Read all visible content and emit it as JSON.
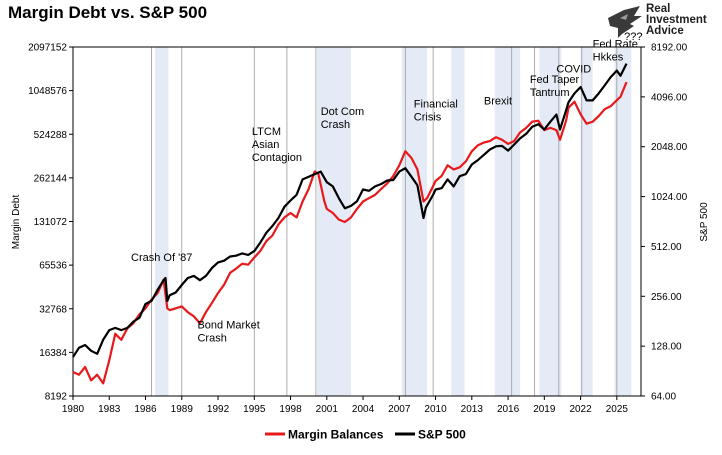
{
  "chart_data": {
    "type": "line",
    "title": "Margin Debt vs. S&P 500",
    "ylabel_left": "Margin Debt",
    "ylabel_right": "S&P 500",
    "left_axis": {
      "scale": "log2",
      "range": [
        8192,
        2097152
      ],
      "ticks": [
        "8192",
        "16384",
        "32768",
        "65536",
        "131072",
        "262144",
        "524288",
        "1048576",
        "2097152"
      ],
      "tick_values": [
        8192,
        16384,
        32768,
        65536,
        131072,
        262144,
        524288,
        1048576,
        2097152
      ]
    },
    "right_axis": {
      "scale": "log2",
      "range": [
        64,
        8192
      ],
      "ticks": [
        "64.00",
        "128.00",
        "256.00",
        "512.00",
        "1024.00",
        "2048.00",
        "4096.00",
        "8192.00"
      ],
      "tick_values": [
        64,
        128,
        256,
        512,
        1024,
        2048,
        4096,
        8192
      ]
    },
    "x_axis": {
      "range": [
        1980,
        2027
      ],
      "ticks": [
        "1980",
        "1983",
        "1986",
        "1989",
        "1992",
        "1995",
        "1998",
        "2001",
        "2004",
        "2007",
        "2010",
        "2013",
        "2016",
        "2019",
        "2022",
        "2025"
      ],
      "tick_values": [
        1980,
        1983,
        1986,
        1989,
        1992,
        1995,
        1998,
        2001,
        2004,
        2007,
        2010,
        2013,
        2016,
        2019,
        2022,
        2025
      ]
    },
    "shaded_periods": [
      [
        1986.8,
        1987.9
      ],
      [
        2000.2,
        2003.0
      ],
      [
        2007.2,
        2009.3
      ],
      [
        2011.3,
        2012.4
      ],
      [
        2014.9,
        2017.0
      ],
      [
        2018.6,
        2020.4
      ],
      [
        2022.0,
        2023.0
      ],
      [
        2024.8,
        2026.2
      ]
    ],
    "vertical_lines": [
      1986.5,
      1989,
      1995,
      1997.7,
      2000.1,
      2007.5,
      2009.8,
      2016.3,
      2018.2,
      2020.2,
      2022.1,
      2025.0
    ],
    "series": [
      {
        "name": "Margin Balances",
        "color": "#e8191b",
        "axis": "left",
        "x": [
          1980,
          1980.5,
          1981,
          1981.5,
          1982,
          1982.5,
          1983,
          1983.5,
          1984,
          1984.5,
          1985,
          1985.5,
          1986,
          1986.5,
          1987,
          1987.5,
          1987.8,
          1988,
          1988.5,
          1989,
          1989.5,
          1990,
          1990.5,
          1991,
          1991.5,
          1992,
          1992.5,
          1993,
          1993.5,
          1994,
          1994.5,
          1995,
          1995.5,
          1996,
          1996.5,
          1997,
          1997.5,
          1998,
          1998.5,
          1999,
          1999.5,
          2000,
          2000.3,
          2000.8,
          2001,
          2001.5,
          2002,
          2002.5,
          2003,
          2003.5,
          2004,
          2004.5,
          2005,
          2005.5,
          2006,
          2006.5,
          2007,
          2007.5,
          2008,
          2008.5,
          2009,
          2009.3,
          2009.8,
          2010,
          2010.5,
          2011,
          2011.5,
          2012,
          2012.5,
          2013,
          2013.5,
          2014,
          2014.5,
          2015,
          2015.5,
          2016,
          2016.5,
          2017,
          2017.5,
          2018,
          2018.5,
          2019,
          2019.5,
          2020,
          2020.3,
          2020.8,
          2021,
          2021.5,
          2022,
          2022.5,
          2023,
          2023.5,
          2024,
          2024.5,
          2025,
          2025.3,
          2025.8
        ],
        "values": [
          12000,
          11500,
          13000,
          10500,
          11500,
          10000,
          14500,
          22000,
          20000,
          24000,
          26000,
          30000,
          33000,
          38000,
          42000,
          52000,
          33000,
          32000,
          33000,
          34000,
          31000,
          29000,
          26000,
          31000,
          36000,
          42000,
          48000,
          58000,
          62000,
          67000,
          66000,
          74000,
          82000,
          96000,
          105000,
          125000,
          140000,
          150000,
          140000,
          180000,
          220000,
          290000,
          280000,
          180000,
          160000,
          150000,
          135000,
          130000,
          140000,
          160000,
          180000,
          190000,
          200000,
          220000,
          240000,
          270000,
          320000,
          400000,
          360000,
          300000,
          180000,
          190000,
          230000,
          250000,
          270000,
          320000,
          300000,
          310000,
          340000,
          400000,
          440000,
          460000,
          470000,
          500000,
          480000,
          450000,
          470000,
          540000,
          580000,
          640000,
          650000,
          560000,
          580000,
          560000,
          480000,
          650000,
          800000,
          880000,
          720000,
          620000,
          640000,
          700000,
          780000,
          820000,
          900000,
          950000,
          1200000
        ]
      },
      {
        "name": "S&P 500",
        "color": "#000000",
        "axis": "right",
        "x": [
          1980,
          1980.5,
          1981,
          1981.5,
          1982,
          1982.5,
          1983,
          1983.5,
          1984,
          1984.5,
          1985,
          1985.5,
          1986,
          1986.5,
          1987,
          1987.5,
          1987.65,
          1987.8,
          1988,
          1988.5,
          1989,
          1989.5,
          1990,
          1990.5,
          1991,
          1991.5,
          1992,
          1992.5,
          1993,
          1993.5,
          1994,
          1994.5,
          1995,
          1995.5,
          1996,
          1996.5,
          1997,
          1997.5,
          1998,
          1998.5,
          1999,
          1999.5,
          2000,
          2000.5,
          2001,
          2001.5,
          2002,
          2002.5,
          2003,
          2003.5,
          2004,
          2004.5,
          2005,
          2005.5,
          2006,
          2006.5,
          2007,
          2007.5,
          2008,
          2008.5,
          2009,
          2009.2,
          2009.8,
          2010,
          2010.5,
          2011,
          2011.5,
          2012,
          2012.5,
          2013,
          2013.5,
          2014,
          2014.5,
          2015,
          2015.5,
          2016,
          2016.5,
          2017,
          2017.5,
          2018,
          2018.5,
          2019,
          2019.5,
          2020,
          2020.3,
          2020.8,
          2021,
          2021.5,
          2022,
          2022.5,
          2023,
          2023.5,
          2024,
          2024.5,
          2025,
          2025.3,
          2025.8
        ],
        "values": [
          110,
          125,
          130,
          120,
          115,
          140,
          160,
          165,
          160,
          165,
          180,
          190,
          230,
          240,
          280,
          320,
          330,
          240,
          260,
          270,
          300,
          330,
          340,
          320,
          340,
          380,
          410,
          420,
          445,
          450,
          465,
          455,
          480,
          540,
          620,
          680,
          760,
          890,
          970,
          1050,
          1300,
          1350,
          1400,
          1450,
          1250,
          1180,
          1000,
          870,
          900,
          960,
          1130,
          1110,
          1180,
          1220,
          1280,
          1290,
          1450,
          1520,
          1350,
          1200,
          760,
          880,
          1050,
          1130,
          1150,
          1300,
          1180,
          1360,
          1400,
          1600,
          1700,
          1830,
          1970,
          2060,
          2070,
          1940,
          2110,
          2300,
          2450,
          2700,
          2800,
          2600,
          2900,
          3200,
          2600,
          3400,
          3800,
          4300,
          4700,
          3900,
          3900,
          4300,
          4800,
          5400,
          5900,
          5500,
          6500
        ]
      }
    ],
    "annotations": [
      {
        "lines": [
          "Crash Of '87"
        ],
        "x": 1984.8,
        "y": 70000
      },
      {
        "lines": [
          "Bond Market",
          "Crash"
        ],
        "x": 1990.3,
        "y": 24000
      },
      {
        "lines": [
          "LTCM",
          "Asian",
          "Contagion"
        ],
        "x": 1994.8,
        "y": 520000
      },
      {
        "lines": [
          "Dot Com",
          "Crash"
        ],
        "x": 2000.5,
        "y": 710000
      },
      {
        "lines": [
          "Financial",
          "Crisis"
        ],
        "x": 2008.2,
        "y": 800000
      },
      {
        "lines": [
          "Brexit"
        ],
        "x": 2014.0,
        "y": 840000
      },
      {
        "lines": [
          "Fed Taper",
          "Tantrum"
        ],
        "x": 2017.8,
        "y": 1180000
      },
      {
        "lines": [
          "COVID"
        ],
        "x": 2020.0,
        "y": 1400000
      },
      {
        "lines": [
          "Fed Rate",
          "Hkkes"
        ],
        "x": 2023.0,
        "y": 2080000
      },
      {
        "lines": [
          "???"
        ],
        "x": 2025.6,
        "y": 2350000
      }
    ]
  },
  "legend": [
    {
      "label": "Margin Balances",
      "color": "#e8191b"
    },
    {
      "label": "S&P 500",
      "color": "#000000"
    }
  ],
  "logo": {
    "line1": "Real",
    "line2": "Investment",
    "line3": "Advice"
  }
}
